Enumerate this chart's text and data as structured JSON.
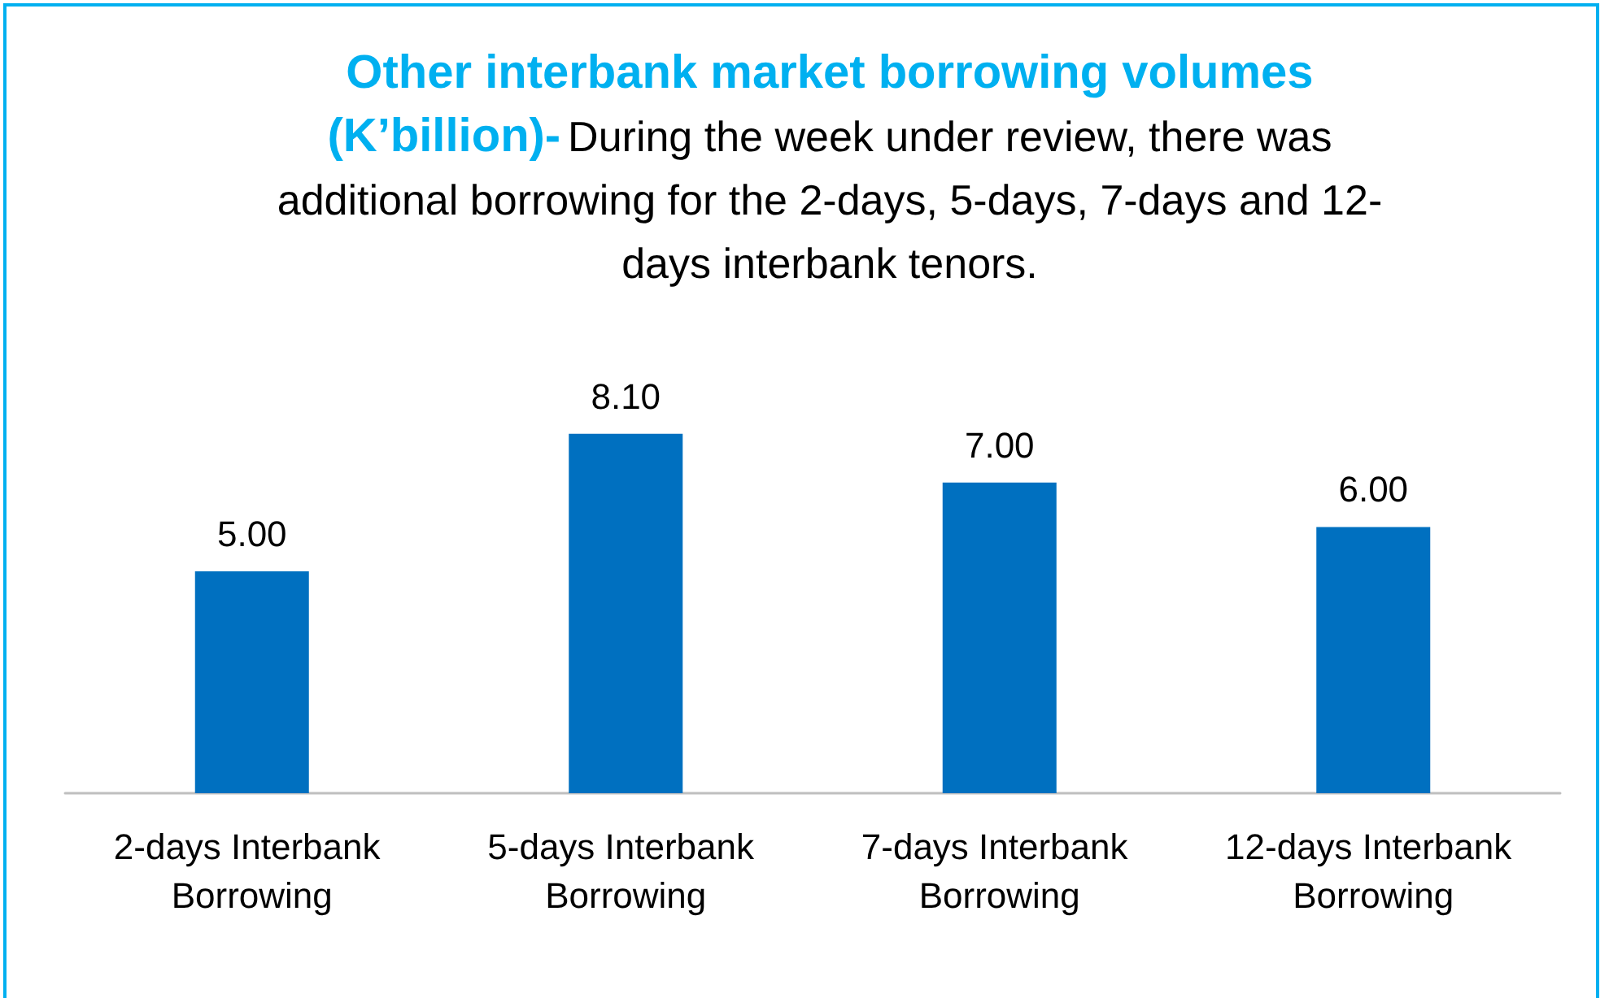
{
  "chart_data": {
    "type": "bar",
    "title": "Other interbank market borrowing volumes (K’billion)-",
    "subtitle": "During the week under review, there was additional borrowing for the 2-days, 5-days, 7-days and 12-days interbank tenors.",
    "categories": [
      "2-days Interbank Borrowing",
      "5-days Interbank Borrowing",
      "7-days Interbank Borrowing",
      "12-days Interbank Borrowing"
    ],
    "values": [
      5.0,
      8.1,
      7.0,
      6.0
    ],
    "value_labels": [
      "5.00",
      "8.10",
      "7.00",
      "6.00"
    ],
    "color": "#0070c0"
  }
}
